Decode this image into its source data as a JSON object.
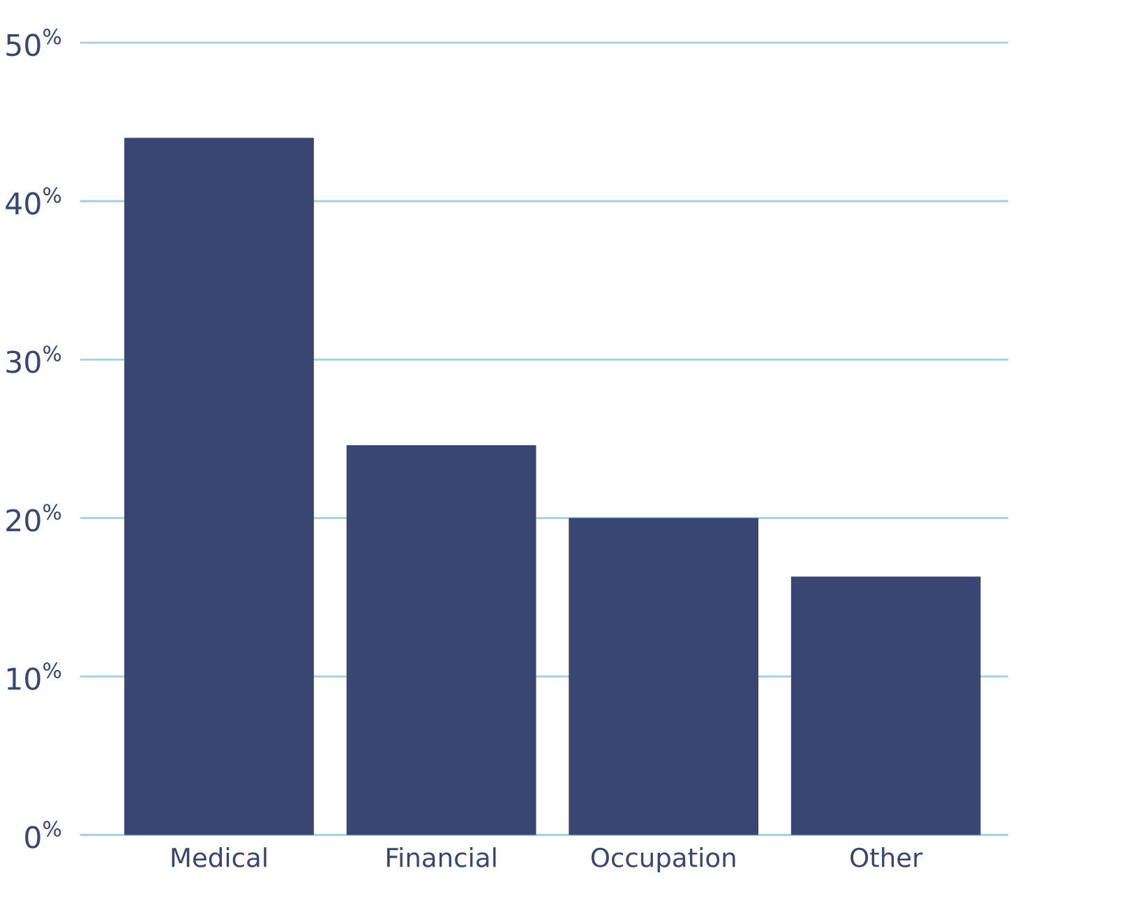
{
  "chart_data": {
    "type": "bar",
    "categories": [
      "Medical",
      "Financial",
      "Occupation",
      "Other"
    ],
    "values": [
      44,
      24.6,
      20,
      16.3
    ],
    "color": "#3a4672",
    "ylim": [
      0,
      50
    ],
    "yticks": [
      {
        "value": 0,
        "label": "0$^{%}$"
      },
      {
        "value": 10,
        "label": "10$^{%}$"
      },
      {
        "value": 20,
        "label": "20$^{%}$"
      },
      {
        "value": 30,
        "label": "30$^{%}$"
      },
      {
        "value": 40,
        "label": "40$^{%}$"
      },
      {
        "value": 50,
        "label": "50$^{%}$"
      }
    ],
    "grid": "y"
  }
}
